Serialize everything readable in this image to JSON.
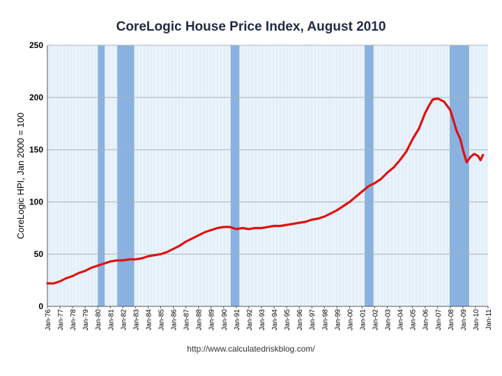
{
  "chart_data": {
    "type": "line",
    "title": "CoreLogic House Price Index, August 2010",
    "xlabel": "",
    "ylabel": "CoreLogic HPI, Jan 2000 = 100",
    "ylim": [
      0,
      250
    ],
    "yticks": [
      0,
      50,
      100,
      150,
      200,
      250
    ],
    "xlim": [
      1976,
      2011
    ],
    "xticks": [
      "Jan-76",
      "Jan-77",
      "Jan-78",
      "Jan-79",
      "Jan-80",
      "Jan-81",
      "Jan-82",
      "Jan-83",
      "Jan-84",
      "Jan-85",
      "Jan-86",
      "Jan-87",
      "Jan-88",
      "Jan-89",
      "Jan-90",
      "Jan-91",
      "Jan-92",
      "Jan-93",
      "Jan-94",
      "Jan-95",
      "Jan-96",
      "Jan-97",
      "Jan-98",
      "Jan-99",
      "Jan-00",
      "Jan-01",
      "Jan-02",
      "Jan-03",
      "Jan-04",
      "Jan-05",
      "Jan-06",
      "Jan-07",
      "Jan-08",
      "Jan-09",
      "Jan-10",
      "Jan-11"
    ],
    "recessions": [
      [
        1980.0,
        1980.55
      ],
      [
        1981.55,
        1982.9
      ],
      [
        1990.55,
        1991.25
      ],
      [
        2001.2,
        2001.9
      ],
      [
        2007.95,
        2009.5
      ]
    ],
    "grid": true,
    "series": [
      {
        "name": "",
        "color": "#e01010",
        "x": [
          1976.0,
          1976.5,
          1977.0,
          1977.5,
          1978.0,
          1978.5,
          1979.0,
          1979.5,
          1980.0,
          1980.5,
          1981.0,
          1981.5,
          1982.0,
          1982.5,
          1983.0,
          1983.5,
          1984.0,
          1984.5,
          1985.0,
          1985.5,
          1986.0,
          1986.5,
          1987.0,
          1987.5,
          1988.0,
          1988.5,
          1989.0,
          1989.5,
          1990.0,
          1990.5,
          1991.0,
          1991.5,
          1992.0,
          1992.5,
          1993.0,
          1993.5,
          1994.0,
          1994.5,
          1995.0,
          1995.5,
          1996.0,
          1996.5,
          1997.0,
          1997.5,
          1998.0,
          1998.5,
          1999.0,
          1999.5,
          2000.0,
          2000.5,
          2001.0,
          2001.5,
          2002.0,
          2002.5,
          2003.0,
          2003.5,
          2004.0,
          2004.5,
          2005.0,
          2005.5,
          2006.0,
          2006.3,
          2006.6,
          2007.0,
          2007.5,
          2008.0,
          2008.5,
          2008.8,
          2009.0,
          2009.3,
          2009.6,
          2009.9,
          2010.2,
          2010.4,
          2010.6
        ],
        "y": [
          22,
          22,
          24,
          27,
          29,
          32,
          34,
          37,
          39,
          41,
          43,
          44,
          44,
          45,
          45,
          46,
          48,
          49,
          50,
          52,
          55,
          58,
          62,
          65,
          68,
          71,
          73,
          75,
          76,
          76,
          74,
          75,
          74,
          75,
          75,
          76,
          77,
          77,
          78,
          79,
          80,
          81,
          83,
          84,
          86,
          89,
          92,
          96,
          100,
          105,
          110,
          115,
          118,
          122,
          128,
          133,
          140,
          148,
          160,
          170,
          185,
          192,
          198,
          199,
          196,
          188,
          168,
          160,
          150,
          138,
          143,
          146,
          144,
          140,
          145
        ]
      }
    ]
  },
  "source": "http://www.calculatedriskblog.com/",
  "colors": {
    "plot_bg": "#eaf3fb",
    "recession": "#8ab2e0",
    "gridline": "#a8b0b8",
    "line": "#e01010"
  }
}
